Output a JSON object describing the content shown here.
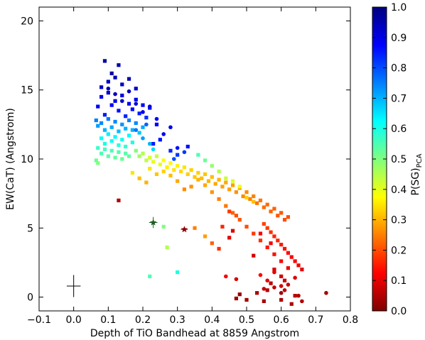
{
  "chart_data": {
    "type": "scatter",
    "xlabel": "Depth of TiO Bandhead at 8859 Angstrom",
    "ylabel": "EW(CaT) (Angstrom)",
    "xlim": [
      -0.1,
      0.8
    ],
    "ylim": [
      -1,
      21
    ],
    "x_ticks": [
      "−0.1",
      "0.0",
      "0.1",
      "0.2",
      "0.3",
      "0.4",
      "0.5",
      "0.6",
      "0.7",
      "0.8"
    ],
    "x_tick_values": [
      -0.1,
      0.0,
      0.1,
      0.2,
      0.3,
      0.4,
      0.5,
      0.6,
      0.7,
      0.8
    ],
    "y_ticks": [
      "0",
      "5",
      "10",
      "15",
      "20"
    ],
    "y_tick_values": [
      0,
      5,
      10,
      15,
      20
    ],
    "colorbar": {
      "label_main": "P(SG)",
      "label_sub": "PCA",
      "range": [
        0.0,
        1.0
      ],
      "ticks": [
        "0.0",
        "0.1",
        "0.2",
        "0.3",
        "0.4",
        "0.5",
        "0.6",
        "0.7",
        "0.8",
        "0.9",
        "1.0"
      ],
      "colormap": "jet"
    },
    "grid": false,
    "series": [
      {
        "marker": "square",
        "color_by": "P(SG)_PCA",
        "points": [
          [
            0.07,
            13.8,
            0.88
          ],
          [
            0.08,
            14.5,
            0.9
          ],
          [
            0.09,
            13.2,
            0.85
          ],
          [
            0.1,
            14.8,
            0.92
          ],
          [
            0.11,
            13.9,
            0.88
          ],
          [
            0.12,
            14.2,
            0.9
          ],
          [
            0.13,
            13.5,
            0.86
          ],
          [
            0.14,
            14.6,
            0.91
          ],
          [
            0.15,
            13.1,
            0.84
          ],
          [
            0.16,
            14.0,
            0.89
          ],
          [
            0.17,
            13.6,
            0.87
          ],
          [
            0.18,
            14.3,
            0.9
          ],
          [
            0.19,
            13.3,
            0.85
          ],
          [
            0.2,
            13.9,
            0.88
          ],
          [
            0.21,
            13.0,
            0.83
          ],
          [
            0.22,
            13.7,
            0.87
          ],
          [
            0.08,
            15.2,
            0.93
          ],
          [
            0.1,
            15.6,
            0.94
          ],
          [
            0.12,
            15.9,
            0.95
          ],
          [
            0.14,
            15.4,
            0.93
          ],
          [
            0.09,
            17.1,
            0.97
          ],
          [
            0.13,
            16.8,
            0.96
          ],
          [
            0.11,
            16.2,
            0.96
          ],
          [
            0.16,
            15.8,
            0.95
          ],
          [
            0.18,
            15.1,
            0.93
          ],
          [
            0.065,
            12.8,
            0.75
          ],
          [
            0.07,
            12.4,
            0.72
          ],
          [
            0.08,
            12.6,
            0.74
          ],
          [
            0.09,
            12.1,
            0.7
          ],
          [
            0.1,
            12.9,
            0.76
          ],
          [
            0.11,
            12.3,
            0.71
          ],
          [
            0.12,
            12.7,
            0.74
          ],
          [
            0.13,
            12.0,
            0.69
          ],
          [
            0.14,
            12.5,
            0.73
          ],
          [
            0.15,
            12.2,
            0.7
          ],
          [
            0.16,
            12.8,
            0.75
          ],
          [
            0.17,
            12.1,
            0.7
          ],
          [
            0.18,
            12.6,
            0.74
          ],
          [
            0.19,
            11.9,
            0.68
          ],
          [
            0.2,
            12.3,
            0.71
          ],
          [
            0.08,
            11.5,
            0.62
          ],
          [
            0.09,
            11.1,
            0.6
          ],
          [
            0.1,
            11.8,
            0.64
          ],
          [
            0.11,
            11.3,
            0.61
          ],
          [
            0.12,
            11.6,
            0.63
          ],
          [
            0.13,
            11.0,
            0.59
          ],
          [
            0.14,
            11.4,
            0.61
          ],
          [
            0.15,
            10.9,
            0.58
          ],
          [
            0.16,
            11.7,
            0.63
          ],
          [
            0.17,
            11.2,
            0.6
          ],
          [
            0.07,
            10.8,
            0.57
          ],
          [
            0.08,
            10.4,
            0.55
          ],
          [
            0.09,
            10.7,
            0.56
          ],
          [
            0.1,
            10.2,
            0.54
          ],
          [
            0.11,
            10.6,
            0.55
          ],
          [
            0.12,
            10.1,
            0.53
          ],
          [
            0.13,
            10.5,
            0.55
          ],
          [
            0.14,
            10.0,
            0.52
          ],
          [
            0.15,
            10.4,
            0.54
          ],
          [
            0.16,
            10.2,
            0.53
          ],
          [
            0.065,
            9.9,
            0.52
          ],
          [
            0.07,
            9.7,
            0.5
          ],
          [
            0.18,
            10.6,
            0.5
          ],
          [
            0.19,
            10.2,
            0.47
          ],
          [
            0.2,
            10.4,
            0.45
          ],
          [
            0.21,
            9.9,
            0.44
          ],
          [
            0.22,
            10.1,
            0.42
          ],
          [
            0.23,
            9.8,
            0.4
          ],
          [
            0.24,
            10.2,
            0.43
          ],
          [
            0.25,
            9.6,
            0.4
          ],
          [
            0.26,
            9.9,
            0.38
          ],
          [
            0.27,
            9.4,
            0.36
          ],
          [
            0.28,
            9.7,
            0.37
          ],
          [
            0.29,
            9.2,
            0.35
          ],
          [
            0.3,
            9.5,
            0.36
          ],
          [
            0.31,
            9.1,
            0.34
          ],
          [
            0.32,
            9.4,
            0.35
          ],
          [
            0.33,
            8.9,
            0.33
          ],
          [
            0.34,
            9.2,
            0.33
          ],
          [
            0.35,
            8.7,
            0.32
          ],
          [
            0.36,
            9.0,
            0.33
          ],
          [
            0.37,
            8.6,
            0.31
          ],
          [
            0.38,
            8.9,
            0.32
          ],
          [
            0.39,
            8.4,
            0.3
          ],
          [
            0.4,
            8.7,
            0.31
          ],
          [
            0.41,
            8.2,
            0.29
          ],
          [
            0.42,
            8.5,
            0.3
          ],
          [
            0.43,
            8.0,
            0.28
          ],
          [
            0.44,
            8.3,
            0.29
          ],
          [
            0.45,
            7.8,
            0.28
          ],
          [
            0.46,
            8.1,
            0.28
          ],
          [
            0.47,
            7.6,
            0.27
          ],
          [
            0.48,
            7.9,
            0.27
          ],
          [
            0.49,
            7.3,
            0.26
          ],
          [
            0.5,
            7.6,
            0.26
          ],
          [
            0.51,
            7.1,
            0.25
          ],
          [
            0.52,
            7.3,
            0.25
          ],
          [
            0.53,
            6.8,
            0.24
          ],
          [
            0.54,
            7.0,
            0.24
          ],
          [
            0.55,
            6.5,
            0.23
          ],
          [
            0.56,
            6.7,
            0.23
          ],
          [
            0.57,
            6.2,
            0.22
          ],
          [
            0.58,
            6.4,
            0.22
          ],
          [
            0.59,
            5.9,
            0.21
          ],
          [
            0.6,
            6.1,
            0.21
          ],
          [
            0.61,
            5.6,
            0.2
          ],
          [
            0.62,
            5.8,
            0.2
          ],
          [
            0.55,
            5.3,
            0.19
          ],
          [
            0.56,
            5.0,
            0.18
          ],
          [
            0.57,
            4.7,
            0.17
          ],
          [
            0.58,
            4.4,
            0.16
          ],
          [
            0.59,
            4.1,
            0.16
          ],
          [
            0.6,
            3.8,
            0.15
          ],
          [
            0.61,
            3.5,
            0.14
          ],
          [
            0.62,
            3.2,
            0.13
          ],
          [
            0.63,
            2.9,
            0.12
          ],
          [
            0.64,
            2.6,
            0.12
          ],
          [
            0.65,
            2.3,
            0.11
          ],
          [
            0.66,
            2.0,
            0.1
          ],
          [
            0.62,
            2.1,
            0.11
          ],
          [
            0.6,
            2.6,
            0.12
          ],
          [
            0.58,
            3.1,
            0.14
          ],
          [
            0.56,
            3.6,
            0.15
          ],
          [
            0.54,
            4.1,
            0.17
          ],
          [
            0.52,
            4.6,
            0.18
          ],
          [
            0.5,
            5.1,
            0.2
          ],
          [
            0.48,
            5.6,
            0.21
          ],
          [
            0.46,
            6.1,
            0.22
          ],
          [
            0.44,
            6.6,
            0.24
          ],
          [
            0.42,
            7.1,
            0.25
          ],
          [
            0.4,
            7.6,
            0.27
          ],
          [
            0.38,
            8.1,
            0.29
          ],
          [
            0.36,
            8.5,
            0.3
          ],
          [
            0.34,
            8.0,
            0.27
          ],
          [
            0.32,
            7.8,
            0.26
          ],
          [
            0.3,
            8.4,
            0.29
          ],
          [
            0.28,
            8.8,
            0.31
          ],
          [
            0.26,
            9.1,
            0.33
          ],
          [
            0.24,
            8.9,
            0.32
          ],
          [
            0.22,
            9.3,
            0.35
          ],
          [
            0.33,
            10.9,
            0.86
          ],
          [
            0.3,
            10.3,
            0.82
          ],
          [
            0.28,
            10.6,
            0.84
          ],
          [
            0.25,
            11.4,
            0.86
          ],
          [
            0.24,
            12.5,
            0.88
          ],
          [
            0.23,
            11.1,
            0.85
          ],
          [
            0.36,
            10.3,
            0.55
          ],
          [
            0.38,
            9.9,
            0.52
          ],
          [
            0.4,
            9.5,
            0.48
          ],
          [
            0.42,
            9.1,
            0.45
          ],
          [
            0.44,
            8.6,
            0.43
          ],
          [
            0.46,
            8.4,
            0.41
          ],
          [
            0.48,
            8.0,
            0.39
          ],
          [
            0.5,
            7.2,
            0.33
          ],
          [
            0.52,
            6.9,
            0.31
          ],
          [
            0.45,
            4.3,
            0.1
          ],
          [
            0.46,
            4.8,
            0.09
          ],
          [
            0.52,
            3.0,
            0.08
          ],
          [
            0.54,
            4.6,
            0.12
          ],
          [
            0.57,
            3.9,
            0.11
          ],
          [
            0.58,
            2.0,
            0.09
          ],
          [
            0.6,
            1.5,
            0.08
          ],
          [
            0.61,
            1.2,
            0.07
          ],
          [
            0.57,
            1.0,
            0.06
          ],
          [
            0.56,
            0.5,
            0.05
          ],
          [
            0.53,
            0.3,
            0.04
          ],
          [
            0.5,
            -0.2,
            0.03
          ],
          [
            0.48,
            0.2,
            0.02
          ],
          [
            0.47,
            -0.1,
            0.03
          ],
          [
            0.55,
            -0.3,
            0.04
          ],
          [
            0.63,
            -0.5,
            0.05
          ],
          [
            0.6,
            -0.2,
            0.04
          ],
          [
            0.64,
            0.1,
            0.06
          ],
          [
            0.3,
            1.8,
            0.6
          ],
          [
            0.22,
            1.5,
            0.55
          ],
          [
            0.26,
            5.1,
            0.5
          ],
          [
            0.27,
            3.6,
            0.45
          ],
          [
            0.21,
            8.3,
            0.3
          ],
          [
            0.19,
            8.6,
            0.31
          ],
          [
            0.17,
            9.0,
            0.35
          ],
          [
            0.35,
            5.0,
            0.25
          ],
          [
            0.38,
            4.4,
            0.28
          ],
          [
            0.4,
            3.9,
            0.22
          ],
          [
            0.42,
            3.5,
            0.17
          ],
          [
            0.43,
            5.1,
            0.16
          ],
          [
            0.45,
            6.2,
            0.18
          ],
          [
            0.47,
            5.9,
            0.2
          ],
          [
            0.13,
            7.0,
            0.05
          ]
        ]
      },
      {
        "marker": "circle",
        "color_by": "P(SG)_PCA",
        "points": [
          [
            0.1,
            15.1,
            0.95
          ],
          [
            0.12,
            14.7,
            0.94
          ],
          [
            0.14,
            14.2,
            0.92
          ],
          [
            0.16,
            14.9,
            0.94
          ],
          [
            0.18,
            14.0,
            0.91
          ],
          [
            0.2,
            13.4,
            0.89
          ],
          [
            0.22,
            13.8,
            0.9
          ],
          [
            0.24,
            12.9,
            0.88
          ],
          [
            0.26,
            11.8,
            0.88
          ],
          [
            0.28,
            12.3,
            0.9
          ],
          [
            0.3,
            10.8,
            0.86
          ],
          [
            0.32,
            10.5,
            0.82
          ],
          [
            0.29,
            10.0,
            0.8
          ],
          [
            0.22,
            11.1,
            0.7
          ],
          [
            0.23,
            10.7,
            0.66
          ],
          [
            0.2,
            11.5,
            0.72
          ],
          [
            0.18,
            12.1,
            0.76
          ],
          [
            0.21,
            12.5,
            0.78
          ],
          [
            0.44,
            1.5,
            0.12
          ],
          [
            0.54,
            1.6,
            0.13
          ],
          [
            0.56,
            1.2,
            0.1
          ],
          [
            0.58,
            1.8,
            0.1
          ],
          [
            0.6,
            0.8,
            0.08
          ],
          [
            0.61,
            0.5,
            0.06
          ],
          [
            0.62,
            0.9,
            0.07
          ],
          [
            0.64,
            1.4,
            0.09
          ],
          [
            0.65,
            0.1,
            0.05
          ],
          [
            0.73,
            0.3,
            0.04
          ],
          [
            0.66,
            -0.3,
            0.05
          ],
          [
            0.6,
            0.3,
            0.03
          ],
          [
            0.58,
            0.7,
            0.06
          ],
          [
            0.55,
            0.6,
            0.07
          ],
          [
            0.47,
            1.3,
            0.09
          ]
        ]
      }
    ],
    "special_points": [
      {
        "x": 0.23,
        "y": 5.4,
        "marker": "star",
        "color": "#1b5e20",
        "xerr": 0.012,
        "yerr": 0.4
      },
      {
        "x": 0.32,
        "y": 4.9,
        "marker": "star",
        "color": "#8b0000",
        "xerr": 0.01,
        "yerr": 0.1
      }
    ],
    "error_bar_sample": {
      "x": 0.0,
      "y": 0.8,
      "xerr": 0.02,
      "yerr": 0.8,
      "color": "#000000"
    }
  }
}
